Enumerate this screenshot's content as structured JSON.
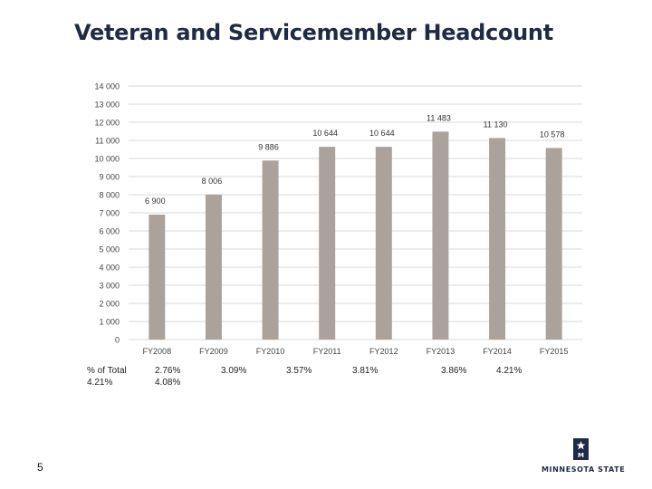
{
  "slide": {
    "title": "Veteran and Servicemember Headcount",
    "page_number": "5"
  },
  "footer": {
    "pct_label_line1": "% of Total",
    "pct_label_line2": "4.21%",
    "pct_values": [
      "2.76%\n4.08%",
      "3.09%",
      "3.57%",
      "3.81%",
      "3.86%",
      "4.21%"
    ]
  },
  "logo": {
    "text": "MINNESOTA STATE"
  },
  "chart_data": {
    "type": "bar",
    "title": "Veteran and Servicemember Headcount",
    "categories": [
      "FY2008",
      "FY2009",
      "FY2010",
      "FY2011",
      "FY2012",
      "FY2013",
      "FY2014",
      "FY2015"
    ],
    "values": [
      6900,
      8006,
      9886,
      10644,
      10644,
      11483,
      11130,
      10578
    ],
    "data_labels": [
      "6 900",
      "8 006",
      "9 886",
      "10 644",
      "10 644",
      "11 483",
      "11 130",
      "10 578"
    ],
    "y_ticks": [
      0,
      1000,
      2000,
      3000,
      4000,
      5000,
      6000,
      7000,
      8000,
      9000,
      10000,
      11000,
      12000,
      13000,
      14000
    ],
    "y_tick_labels": [
      "0",
      "1 000",
      "2 000",
      "3 000",
      "4 000",
      "5 000",
      "6 000",
      "7 000",
      "8 000",
      "9 000",
      "10 000",
      "11 000",
      "12 000",
      "13 000",
      "14 000"
    ],
    "ylim": [
      0,
      14000
    ],
    "xlabel": "",
    "ylabel": "",
    "grid": true,
    "bar_color": "#aba39b",
    "grid_color": "#d9d9d9"
  }
}
